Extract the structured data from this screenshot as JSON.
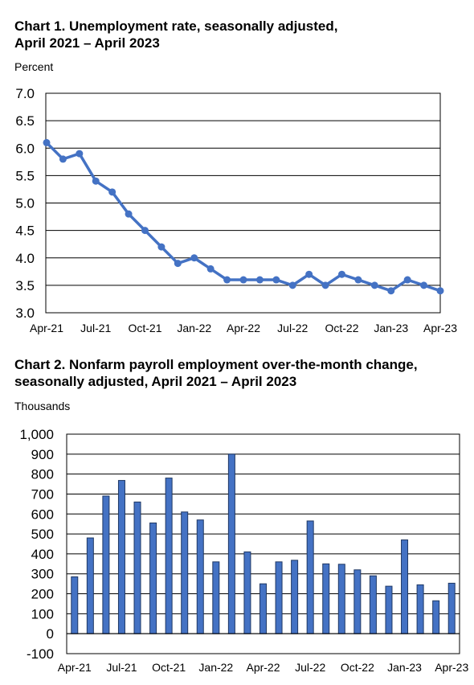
{
  "chart_data": [
    {
      "type": "line",
      "title_line1": "Chart 1. Unemployment rate, seasonally adjusted,",
      "title_line2": "April 2021 – April 2023",
      "ylabel": "Percent",
      "xlabel": "",
      "ylim": [
        3.0,
        7.0
      ],
      "ytick_step": 0.5,
      "ytick_labels": [
        "3.0",
        "3.5",
        "4.0",
        "4.5",
        "5.0",
        "5.5",
        "6.0",
        "6.5",
        "7.0"
      ],
      "x": [
        "Apr-21",
        "May-21",
        "Jun-21",
        "Jul-21",
        "Aug-21",
        "Sep-21",
        "Oct-21",
        "Nov-21",
        "Dec-21",
        "Jan-22",
        "Feb-22",
        "Mar-22",
        "Apr-22",
        "May-22",
        "Jun-22",
        "Jul-22",
        "Aug-22",
        "Sep-22",
        "Oct-22",
        "Nov-22",
        "Dec-22",
        "Jan-23",
        "Feb-23",
        "Mar-23",
        "Apr-23"
      ],
      "xtick_labels": [
        "Apr-21",
        "Jul-21",
        "Oct-21",
        "Jan-22",
        "Apr-22",
        "Jul-22",
        "Oct-22",
        "Jan-23",
        "Apr-23"
      ],
      "series": [
        {
          "values": [
            6.1,
            5.8,
            5.9,
            5.4,
            5.2,
            4.8,
            4.5,
            4.2,
            3.9,
            4.0,
            3.8,
            3.6,
            3.6,
            3.6,
            3.6,
            3.5,
            3.7,
            3.5,
            3.7,
            3.6,
            3.5,
            3.4,
            3.6,
            3.5,
            3.4
          ]
        }
      ],
      "grid": "horizontal",
      "line_color": "#4472C4",
      "marker_color": "#4472C4"
    },
    {
      "type": "bar",
      "title_line1": "Chart 2. Nonfarm payroll employment over-the-month change,",
      "title_line2": "seasonally adjusted, April 2021 – April 2023",
      "ylabel": "Thousands",
      "xlabel": "",
      "ylim": [
        -100,
        1000
      ],
      "ytick_step": 100,
      "ytick_labels": [
        "-100",
        "0",
        "100",
        "200",
        "300",
        "400",
        "500",
        "600",
        "700",
        "800",
        "900",
        "1,000"
      ],
      "categories": [
        "Apr-21",
        "May-21",
        "Jun-21",
        "Jul-21",
        "Aug-21",
        "Sep-21",
        "Oct-21",
        "Nov-21",
        "Dec-21",
        "Jan-22",
        "Feb-22",
        "Mar-22",
        "Apr-22",
        "May-22",
        "Jun-22",
        "Jul-22",
        "Aug-22",
        "Sep-22",
        "Oct-22",
        "Nov-22",
        "Dec-22",
        "Jan-23",
        "Feb-23",
        "Mar-23",
        "Apr-23"
      ],
      "xtick_labels": [
        "Apr-21",
        "Jul-21",
        "Oct-21",
        "Jan-22",
        "Apr-22",
        "Jul-22",
        "Oct-22",
        "Jan-23",
        "Apr-23"
      ],
      "values": [
        285,
        480,
        690,
        768,
        660,
        555,
        780,
        610,
        570,
        360,
        900,
        410,
        250,
        360,
        368,
        565,
        350,
        348,
        320,
        290,
        238,
        470,
        245,
        165,
        253
      ],
      "grid": "horizontal",
      "bar_color": "#4472C4",
      "bar_edge_color": "#1F3864"
    }
  ]
}
